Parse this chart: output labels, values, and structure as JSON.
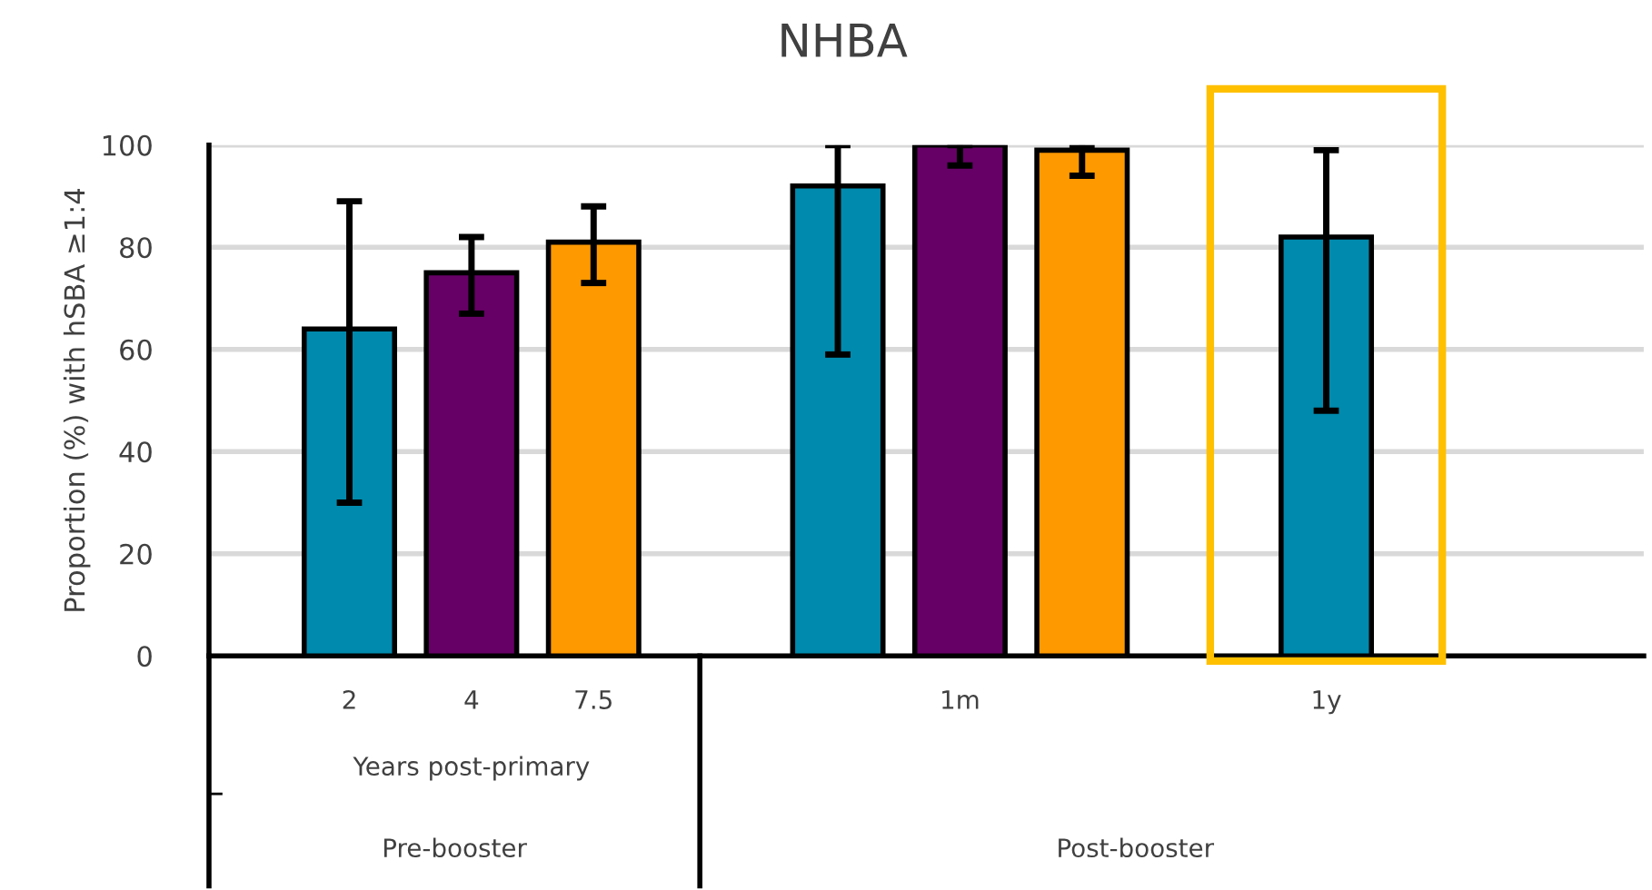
{
  "chart_data": {
    "type": "bar",
    "title": "NHBA",
    "ylabel": "Proportion (%) with hSBA ≥1:4",
    "xlabel": "Years post-primary",
    "categories": [
      "2",
      "4",
      "7.5",
      null,
      null,
      "1m",
      null,
      null,
      "1y"
    ],
    "values": [
      64,
      75,
      81,
      null,
      92,
      100,
      99,
      null,
      82
    ],
    "colors": [
      "#008aad",
      "#660066",
      "#ff9900",
      "#008aad",
      "#008aad",
      "#660066",
      "#ff9900",
      "#008aad",
      "#008aad"
    ],
    "errors": [
      [
        30,
        89
      ],
      [
        67,
        82
      ],
      [
        73,
        88
      ],
      null,
      [
        59,
        100
      ],
      [
        96,
        100
      ],
      [
        94,
        100
      ],
      null,
      [
        48,
        99
      ]
    ],
    "ylim": [
      0,
      100
    ],
    "yticks": [
      0,
      20,
      40,
      60,
      80,
      100
    ],
    "grid": "y",
    "annotations": [
      "Pre-booster",
      "Post-booster"
    ]
  }
}
